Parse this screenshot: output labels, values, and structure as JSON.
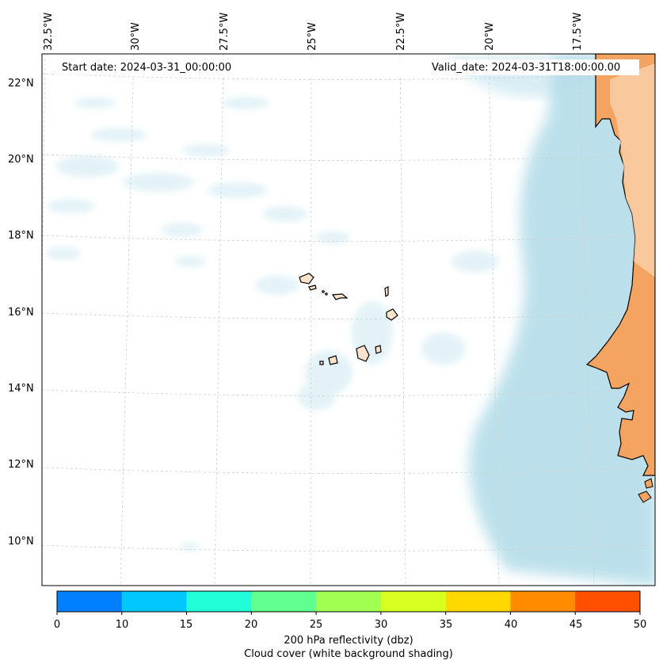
{
  "header": {
    "start_date": "Start date: 2024-03-31_00:00:00",
    "valid_date": "Valid_date: 2024-03-31T18:00:00.00"
  },
  "axes": {
    "lat_labels": [
      "22°N",
      "20°N",
      "18°N",
      "16°N",
      "14°N",
      "12°N",
      "10°N"
    ],
    "lon_labels": [
      "32.5°W",
      "30°W",
      "27.5°W",
      "25°W",
      "22.5°W",
      "20°W",
      "17.5°W"
    ],
    "gridlines": true
  },
  "colorbar": {
    "title_line1": "200 hPa reflectivity (dbz)",
    "title_line2": "Cloud cover (white background shading)",
    "ticks": [
      "0",
      "10",
      "15",
      "20",
      "25",
      "30",
      "35",
      "40",
      "45",
      "50"
    ],
    "colors": [
      "#0080ff",
      "#00c8ff",
      "#20ffd8",
      "#60ff90",
      "#a0ff50",
      "#d8ff20",
      "#ffd800",
      "#ff8c00",
      "#ff5000"
    ]
  },
  "colors": {
    "cloud": "#a9d8e6",
    "land": "#f4a460",
    "coast": "#000000",
    "grid": "#c8c8c8"
  }
}
